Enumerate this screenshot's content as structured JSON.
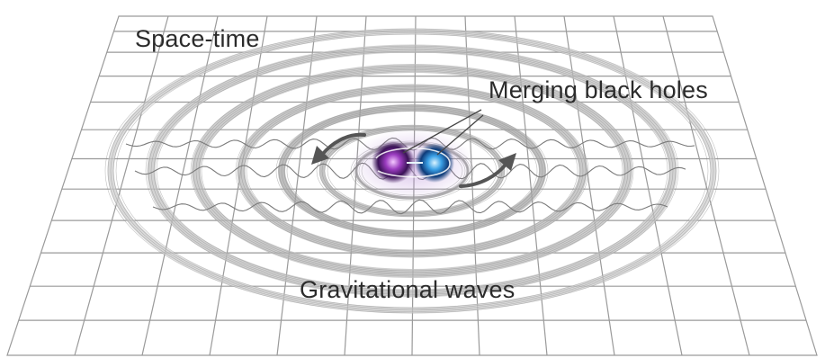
{
  "labels": {
    "spacetime": "Space-time",
    "merging": "Merging black holes",
    "waves": "Gravitational waves"
  },
  "colors": {
    "grid": "#9a9a9a",
    "wave": "#8c8c8c",
    "text": "#2b2b2b",
    "hole_left": "#5a1e6e",
    "hole_right": "#1f73b8",
    "arrow": "#555555"
  }
}
